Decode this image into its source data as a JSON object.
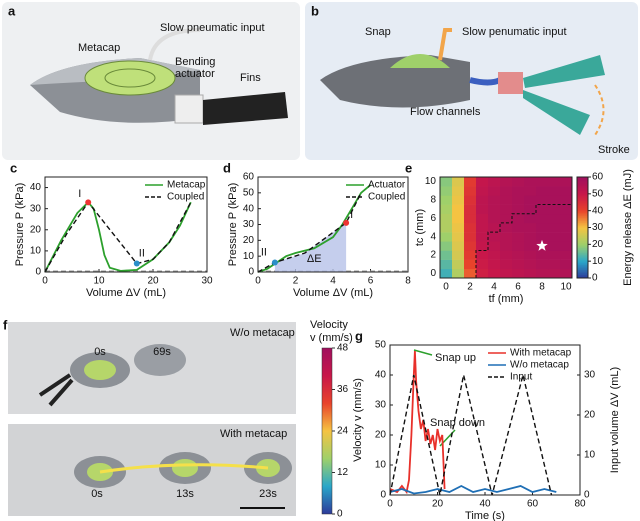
{
  "panels": {
    "a": {
      "letter": "a",
      "labels": [
        "Slow pneumatic input",
        "Metacap",
        "Bending",
        "actuator",
        "Fins"
      ]
    },
    "b": {
      "letter": "b",
      "labels": [
        "Snap",
        "Slow penumatic input",
        "Flow channels",
        "Stroke"
      ]
    },
    "f": {
      "letter": "f",
      "labels": [
        "W/o metacap",
        "0s",
        "69s",
        "With metacap",
        "0s",
        "13s",
        "23s"
      ],
      "colorbar": {
        "title": [
          "Velocity",
          "v (mm/s)"
        ],
        "lim": [
          0,
          48
        ],
        "ticks": [
          0,
          12,
          24,
          36,
          48
        ],
        "colormap": [
          "#2d3a9a",
          "#2aa7c9",
          "#9fd06a",
          "#f5c342",
          "#e8432b",
          "#c8174a",
          "#a0105e"
        ]
      }
    }
  },
  "chart_data": [
    {
      "type": "line",
      "letter": "c",
      "xlabel": "Volume ΔV (mL)",
      "ylabel": "Pressure P (kPa)",
      "xlim": [
        0,
        30
      ],
      "xticks": [
        0,
        10,
        20,
        30
      ],
      "ylim": [
        0,
        45
      ],
      "yticks": [
        0,
        10,
        20,
        30,
        40
      ],
      "annotations": [
        "I",
        "II"
      ],
      "series": [
        {
          "name": "Metacap",
          "color": "#2ca02c",
          "dash": false,
          "x": [
            0,
            3,
            6,
            8,
            9,
            10,
            11,
            12,
            14,
            17,
            20,
            23,
            25,
            27
          ],
          "values": [
            0,
            15,
            28,
            33,
            30,
            20,
            8,
            2,
            0.5,
            1,
            6,
            14,
            22,
            33
          ]
        },
        {
          "name": "Coupled",
          "color": "#111111",
          "dash": true,
          "x": [
            0,
            4,
            8,
            17,
            20,
            23,
            27
          ],
          "values": [
            0,
            18,
            33,
            4,
            6,
            14,
            33
          ]
        }
      ]
    },
    {
      "type": "line",
      "letter": "d",
      "xlabel": "Volume ΔV (mL)",
      "ylabel": "Pressure P (kPa)",
      "xlim": [
        0,
        8
      ],
      "xticks": [
        0,
        2,
        4,
        6,
        8
      ],
      "ylim": [
        0,
        60
      ],
      "yticks": [
        0,
        10,
        20,
        30,
        40,
        50,
        60
      ],
      "annotations": [
        "I",
        "II",
        "ΔE"
      ],
      "series": [
        {
          "name": "Actuator",
          "color": "#2ca02c",
          "dash": false,
          "x": [
            0,
            0.5,
            1,
            1.5,
            2,
            3,
            4,
            4.5,
            5,
            5.5,
            6
          ],
          "values": [
            0,
            2,
            6,
            10,
            12,
            15,
            22,
            30,
            40,
            50,
            55
          ]
        },
        {
          "name": "Coupled",
          "color": "#111111",
          "dash": true,
          "x": [
            0,
            0.9,
            2.5,
            4,
            4.7,
            5.5
          ],
          "values": [
            0,
            6,
            12,
            25,
            31,
            50
          ]
        }
      ]
    },
    {
      "type": "heatmap",
      "letter": "e",
      "xlabel": "tf (mm)",
      "ylabel": "tc (mm)",
      "xlim": [
        -0.5,
        10.5
      ],
      "xticks": [
        0,
        2,
        4,
        6,
        8,
        10
      ],
      "ylim": [
        -0.5,
        10.5
      ],
      "yticks": [
        0,
        2,
        4,
        6,
        8,
        10
      ],
      "colorbar_label": "Energy release ΔE (mJ)",
      "clim": [
        0,
        60
      ],
      "cticks": [
        0,
        10,
        20,
        30,
        40,
        50,
        60
      ],
      "colormap": [
        "#2d3a9a",
        "#2aa7c9",
        "#9fd06a",
        "#f5c342",
        "#e8432b",
        "#c8174a",
        "#a0105e"
      ],
      "values": [
        [
          12,
          22,
          38,
          48,
          50,
          52,
          53,
          54,
          55,
          55,
          56
        ],
        [
          14,
          24,
          40,
          49,
          51,
          53,
          54,
          55,
          56,
          56,
          57
        ],
        [
          16,
          26,
          42,
          50,
          52,
          54,
          55,
          56,
          57,
          57,
          57
        ],
        [
          18,
          27,
          43,
          51,
          53,
          55,
          56,
          57,
          57,
          58,
          58
        ],
        [
          20,
          28,
          44,
          52,
          54,
          55,
          56,
          57,
          58,
          58,
          58
        ],
        [
          22,
          29,
          44,
          52,
          54,
          56,
          57,
          57,
          58,
          58,
          58
        ],
        [
          22,
          30,
          45,
          52,
          55,
          56,
          57,
          58,
          58,
          58,
          58
        ],
        [
          21,
          30,
          45,
          53,
          55,
          56,
          57,
          58,
          58,
          58,
          58
        ],
        [
          20,
          29,
          44,
          53,
          55,
          56,
          57,
          58,
          58,
          58,
          58
        ],
        [
          19,
          28,
          43,
          52,
          54,
          56,
          57,
          57,
          58,
          58,
          58
        ],
        [
          18,
          27,
          42,
          51,
          53,
          55,
          56,
          57,
          57,
          57,
          57
        ]
      ],
      "boundary_x": [
        2.5,
        2.5,
        3.5,
        3.5,
        4.5,
        4.5,
        5.5,
        5.5,
        7.5,
        7.5,
        10.5
      ],
      "boundary_y": [
        -0.5,
        2.5,
        2.5,
        4.5,
        4.5,
        5.5,
        5.5,
        6.5,
        6.5,
        7.5,
        7.5
      ],
      "marker": [
        8,
        3
      ]
    },
    {
      "type": "line",
      "letter": "g",
      "xlabel": "Time (s)",
      "ylabel": "Velocity v (mm/s)",
      "y2label": "Input volume ΔV (mL)",
      "xlim": [
        0,
        80
      ],
      "xticks": [
        0,
        20,
        40,
        60,
        80
      ],
      "ylim": [
        0,
        50
      ],
      "yticks": [
        0,
        10,
        20,
        30,
        40,
        50
      ],
      "y2lim": [
        0,
        37.5
      ],
      "y2ticks": [
        0,
        10,
        20,
        30
      ],
      "annotations": [
        "Snap up",
        "Snap down"
      ],
      "series": [
        {
          "name": "With metacap",
          "color": "#e8302a",
          "dash": false,
          "x": [
            0,
            3,
            5,
            7,
            8,
            9,
            10,
            10.5,
            11,
            12,
            13,
            14,
            15,
            16,
            17,
            18,
            19,
            20,
            21,
            22,
            23
          ],
          "values": [
            2,
            1,
            3,
            1,
            5,
            20,
            40,
            48,
            38,
            28,
            22,
            25,
            18,
            22,
            17,
            20,
            15,
            22,
            18,
            20,
            2
          ]
        },
        {
          "name": "W/o metacap",
          "color": "#1f6fb5",
          "dash": false,
          "x": [
            0,
            5,
            10,
            15,
            20,
            25,
            30,
            35,
            40,
            45,
            50,
            55,
            60,
            65,
            70
          ],
          "values": [
            1,
            2,
            0.5,
            1,
            2,
            1,
            3,
            1,
            2,
            1,
            2,
            3,
            1,
            2,
            1
          ]
        },
        {
          "name": "Input",
          "color": "#111111",
          "dash": true,
          "axis": "y2",
          "x": [
            0,
            10,
            21,
            31,
            43,
            56,
            68
          ],
          "values": [
            0,
            30,
            0,
            30,
            0,
            30,
            0
          ]
        }
      ]
    }
  ]
}
